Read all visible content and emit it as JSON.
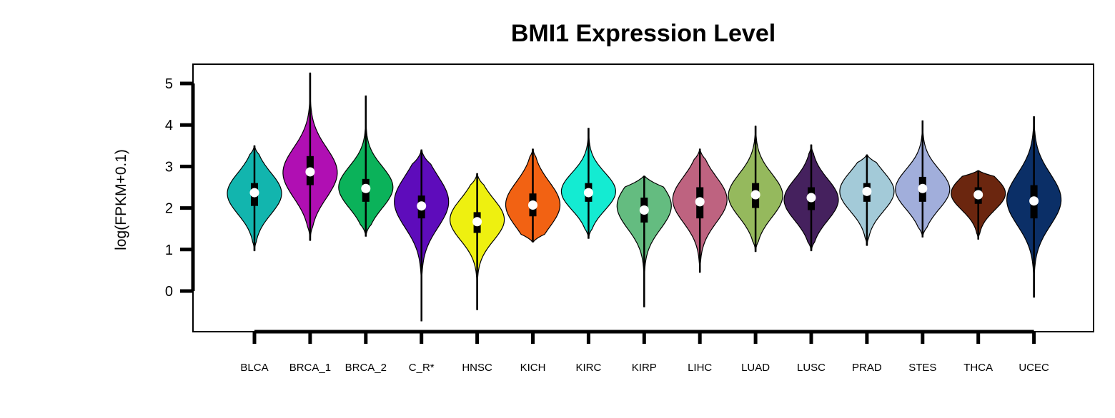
{
  "chart_data": {
    "type": "violin",
    "title": "BMI1 Expression Level",
    "xlabel": "",
    "ylabel": "log(FPKM+0.1)",
    "yticks": [
      0,
      1,
      2,
      3,
      4,
      5
    ],
    "ylim": [
      -1,
      5.5
    ],
    "grid": false,
    "legend": "none",
    "categories": [
      "BLCA",
      "BRCA_1",
      "BRCA_2",
      "C_R*",
      "HNSC",
      "KICH",
      "KIRC",
      "KIRP",
      "LIHC",
      "LUAD",
      "LUSC",
      "PRAD",
      "STES",
      "THCA",
      "UCEC"
    ],
    "series": [
      {
        "category": "BLCA",
        "color": "#12B5AE",
        "min": 0.97,
        "max": 3.5,
        "q1": 2.05,
        "median": 2.37,
        "q3": 2.6,
        "mode": 2.35,
        "spread": 0.5
      },
      {
        "category": "BRCA_1",
        "color": "#B00FB3",
        "min": 1.22,
        "max": 5.25,
        "q1": 2.55,
        "median": 2.87,
        "q3": 3.25,
        "mode": 2.85,
        "spread": 0.6
      },
      {
        "category": "BRCA_2",
        "color": "#0BB25A",
        "min": 1.32,
        "max": 4.7,
        "q1": 2.15,
        "median": 2.47,
        "q3": 2.7,
        "mode": 2.5,
        "spread": 0.5
      },
      {
        "category": "C_R*",
        "color": "#5E0CBB",
        "min": -0.72,
        "max": 3.4,
        "q1": 1.75,
        "median": 2.05,
        "q3": 2.3,
        "mode": 2.15,
        "spread": 0.62
      },
      {
        "category": "HNSC",
        "color": "#EEF010",
        "min": -0.45,
        "max": 2.83,
        "q1": 1.4,
        "median": 1.67,
        "q3": 1.9,
        "mode": 1.72,
        "spread": 0.5
      },
      {
        "category": "KICH",
        "color": "#F26213",
        "min": 1.18,
        "max": 3.42,
        "q1": 1.8,
        "median": 2.07,
        "q3": 2.35,
        "mode": 2.08,
        "spread": 0.55
      },
      {
        "category": "KIRC",
        "color": "#14EBD2",
        "min": 1.27,
        "max": 3.92,
        "q1": 2.15,
        "median": 2.37,
        "q3": 2.6,
        "mode": 2.4,
        "spread": 0.45
      },
      {
        "category": "KIRP",
        "color": "#64BC80",
        "min": -0.38,
        "max": 2.77,
        "q1": 1.65,
        "median": 1.95,
        "q3": 2.25,
        "mode": 2.05,
        "spread": 0.55
      },
      {
        "category": "LIHC",
        "color": "#BE6380",
        "min": 0.45,
        "max": 3.42,
        "q1": 1.75,
        "median": 2.15,
        "q3": 2.5,
        "mode": 2.2,
        "spread": 0.55
      },
      {
        "category": "LUAD",
        "color": "#95B95D",
        "min": 0.95,
        "max": 3.97,
        "q1": 2.0,
        "median": 2.32,
        "q3": 2.6,
        "mode": 2.3,
        "spread": 0.52
      },
      {
        "category": "LUSC",
        "color": "#45215E",
        "min": 0.97,
        "max": 3.52,
        "q1": 1.95,
        "median": 2.25,
        "q3": 2.5,
        "mode": 2.2,
        "spread": 0.5
      },
      {
        "category": "PRAD",
        "color": "#A3CAD8",
        "min": 1.1,
        "max": 3.28,
        "q1": 2.15,
        "median": 2.4,
        "q3": 2.6,
        "mode": 2.4,
        "spread": 0.48
      },
      {
        "category": "STES",
        "color": "#A1AEDB",
        "min": 1.3,
        "max": 4.1,
        "q1": 2.15,
        "median": 2.47,
        "q3": 2.75,
        "mode": 2.45,
        "spread": 0.48
      },
      {
        "category": "THCA",
        "color": "#6B260F",
        "min": 1.25,
        "max": 2.9,
        "q1": 2.1,
        "median": 2.32,
        "q3": 2.5,
        "mode": 2.35,
        "spread": 0.4
      },
      {
        "category": "UCEC",
        "color": "#0B2F67",
        "min": -0.15,
        "max": 4.2,
        "q1": 1.75,
        "median": 2.17,
        "q3": 2.55,
        "mode": 2.2,
        "spread": 0.62
      }
    ]
  }
}
